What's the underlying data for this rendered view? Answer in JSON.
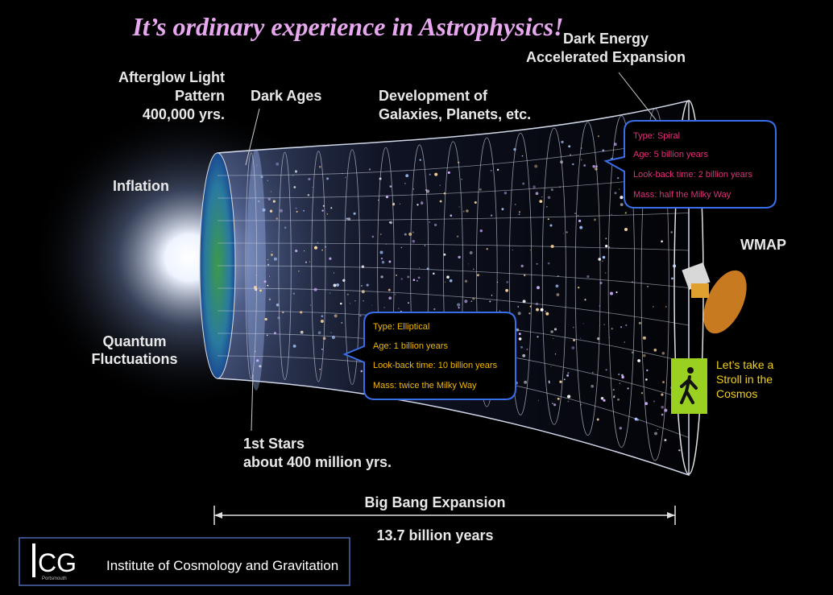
{
  "title": "It’s ordinary experience in Astrophysics!",
  "labels": {
    "afterglow": [
      "Afterglow Light",
      "Pattern",
      "400,000 yrs."
    ],
    "dark_ages": "Dark Ages",
    "development": [
      "Development of",
      "Galaxies, Planets, etc."
    ],
    "dark_energy": [
      "Dark Energy",
      "Accelerated Expansion"
    ],
    "inflation": "Inflation",
    "quantum": [
      "Quantum",
      "Fluctuations"
    ],
    "wmap": "WMAP",
    "first_stars": [
      "1st Stars",
      "about 400 million yrs."
    ]
  },
  "callouts": [
    {
      "lines": [
        "Type: Spiral",
        "Age: 5 billion years",
        "Look-back time: 2 billion years",
        "Mass: half the Milky Way"
      ]
    },
    {
      "lines": [
        "Type: Elliptical",
        "Age: 1 billion years",
        "Look-back time: 10 billion years",
        "Mass: twice the Milky Way"
      ]
    }
  ],
  "link": [
    "Let’s take a",
    "Stroll in the",
    "Cosmos"
  ],
  "timeline": {
    "label": "Big Bang Expansion",
    "duration": "13.7 billion years"
  },
  "logo": {
    "mark": "CG",
    "place": "Portsmouth",
    "name": "Institute of Cosmology and Gravitation"
  }
}
